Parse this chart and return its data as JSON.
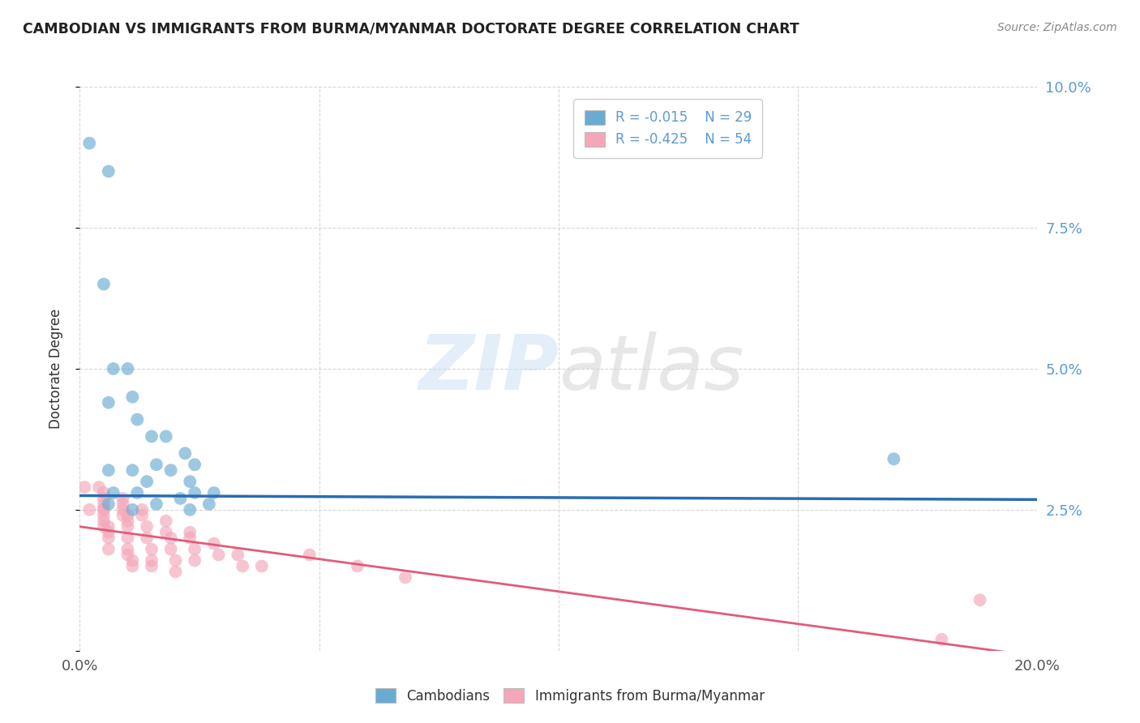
{
  "title": "CAMBODIAN VS IMMIGRANTS FROM BURMA/MYANMAR DOCTORATE DEGREE CORRELATION CHART",
  "source": "Source: ZipAtlas.com",
  "ylabel": "Doctorate Degree",
  "xlim": [
    0.0,
    0.2
  ],
  "ylim": [
    0.0,
    0.1
  ],
  "xticks": [
    0.0,
    0.05,
    0.1,
    0.15,
    0.2
  ],
  "xticklabels": [
    "0.0%",
    "",
    "",
    "",
    "20.0%"
  ],
  "yticks": [
    0.0,
    0.025,
    0.05,
    0.075,
    0.1
  ],
  "yticklabels_right": [
    "",
    "2.5%",
    "5.0%",
    "7.5%",
    "10.0%"
  ],
  "legend_r1": "R = -0.015",
  "legend_n1": "N = 29",
  "legend_r2": "R = -0.425",
  "legend_n2": "N = 54",
  "color_cambodian": "#6aabd2",
  "color_burma": "#f4a7b9",
  "color_line_cambodian": "#2b6cb0",
  "color_line_burma": "#e05c7a",
  "tick_color": "#5b9bd5",
  "cambodian_x": [
    0.002,
    0.006,
    0.007,
    0.01,
    0.011,
    0.006,
    0.012,
    0.015,
    0.018,
    0.022,
    0.016,
    0.024,
    0.006,
    0.011,
    0.019,
    0.014,
    0.023,
    0.007,
    0.012,
    0.024,
    0.028,
    0.021,
    0.006,
    0.016,
    0.027,
    0.023,
    0.011,
    0.17,
    0.005
  ],
  "cambodian_y": [
    0.09,
    0.085,
    0.05,
    0.05,
    0.045,
    0.044,
    0.041,
    0.038,
    0.038,
    0.035,
    0.033,
    0.033,
    0.032,
    0.032,
    0.032,
    0.03,
    0.03,
    0.028,
    0.028,
    0.028,
    0.028,
    0.027,
    0.026,
    0.026,
    0.026,
    0.025,
    0.025,
    0.034,
    0.065
  ],
  "burma_x": [
    0.001,
    0.002,
    0.004,
    0.005,
    0.005,
    0.005,
    0.005,
    0.005,
    0.005,
    0.005,
    0.005,
    0.006,
    0.006,
    0.006,
    0.006,
    0.009,
    0.009,
    0.009,
    0.009,
    0.01,
    0.01,
    0.01,
    0.01,
    0.01,
    0.01,
    0.011,
    0.011,
    0.013,
    0.013,
    0.014,
    0.014,
    0.015,
    0.015,
    0.015,
    0.018,
    0.018,
    0.019,
    0.019,
    0.02,
    0.02,
    0.023,
    0.023,
    0.024,
    0.024,
    0.028,
    0.029,
    0.033,
    0.034,
    0.038,
    0.048,
    0.058,
    0.068,
    0.18,
    0.188
  ],
  "burma_y": [
    0.029,
    0.025,
    0.029,
    0.028,
    0.027,
    0.026,
    0.025,
    0.025,
    0.024,
    0.023,
    0.022,
    0.022,
    0.021,
    0.02,
    0.018,
    0.027,
    0.026,
    0.025,
    0.024,
    0.024,
    0.023,
    0.022,
    0.02,
    0.018,
    0.017,
    0.016,
    0.015,
    0.025,
    0.024,
    0.022,
    0.02,
    0.018,
    0.016,
    0.015,
    0.023,
    0.021,
    0.02,
    0.018,
    0.016,
    0.014,
    0.021,
    0.02,
    0.018,
    0.016,
    0.019,
    0.017,
    0.017,
    0.015,
    0.015,
    0.017,
    0.015,
    0.013,
    0.002,
    0.009
  ],
  "line_cam_x0": 0.0,
  "line_cam_x1": 0.2,
  "line_cam_y0": 0.0275,
  "line_cam_y1": 0.0268,
  "line_bur_x0": 0.0,
  "line_bur_x1": 0.2,
  "line_bur_y0": 0.022,
  "line_bur_y1": -0.001
}
